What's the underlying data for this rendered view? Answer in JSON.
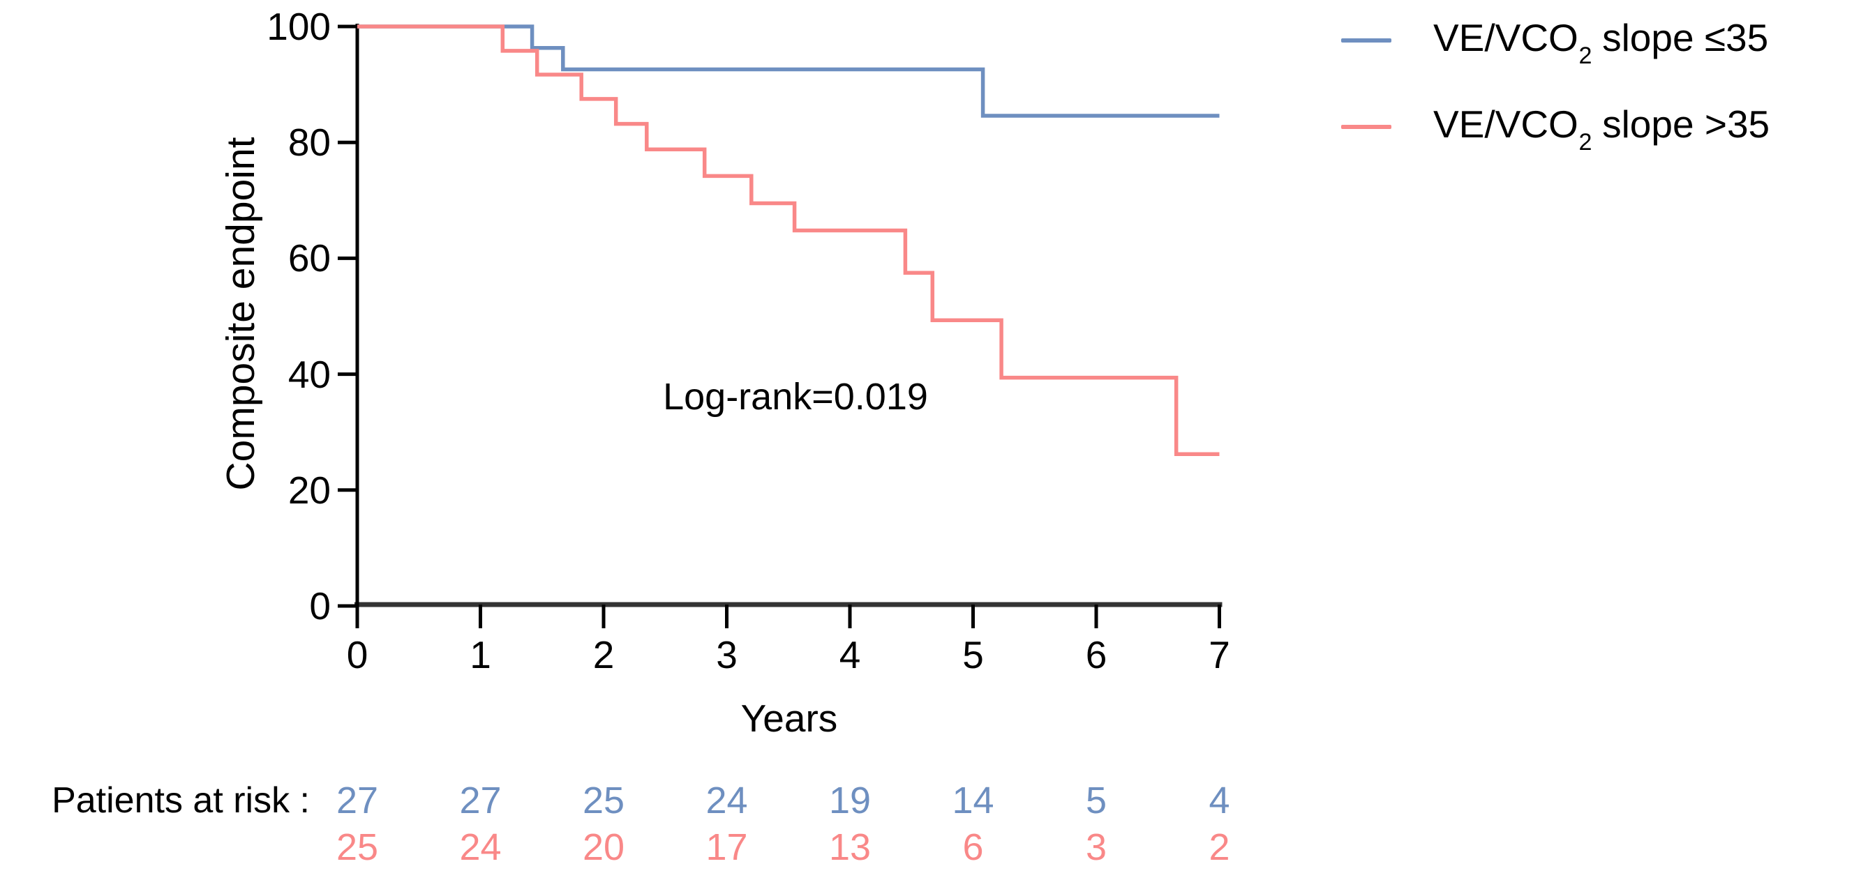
{
  "figure": {
    "y_axis_title": "Composite endpoint",
    "x_axis_title": "Years",
    "annotation": "Log-rank=0.019"
  },
  "colors": {
    "blue_series": "#6e8fc0",
    "red_series": "#f98888",
    "y_axis": "#000000",
    "x_axis": "#333333",
    "text": "#000000"
  },
  "legend": {
    "entries": [
      {
        "prefix": "VE/VCO",
        "sub": "2",
        "suffix": " slope ≤35",
        "color": "#6e8fc0"
      },
      {
        "prefix": "VE/VCO",
        "sub": "2",
        "suffix": " slope >35",
        "color": "#f98888"
      }
    ]
  },
  "chart_data": {
    "type": "line",
    "subtype": "kaplan_meier_step",
    "title": "",
    "xlabel": "Years",
    "ylabel": "Composite endpoint",
    "xlim": [
      0,
      7
    ],
    "ylim": [
      0,
      100
    ],
    "x_ticks": [
      0,
      1,
      2,
      3,
      4,
      5,
      6,
      7
    ],
    "y_ticks": [
      100,
      80,
      60,
      40,
      20,
      0
    ],
    "grid": false,
    "legend_position": "top-right",
    "annotation": {
      "text": "Log-rank=0.019",
      "x": 3.5,
      "y": 33
    },
    "series": [
      {
        "name": "VE/VCO2 slope ≤35",
        "color": "#6e8fc0",
        "start_y": 100,
        "steps": [
          {
            "x": 1.42,
            "y": 96.3
          },
          {
            "x": 1.67,
            "y": 92.6
          },
          {
            "x": 5.08,
            "y": 84.6
          }
        ],
        "end_x": 7.0
      },
      {
        "name": "VE/VCO2 slope >35",
        "color": "#f98888",
        "start_y": 100,
        "steps": [
          {
            "x": 1.18,
            "y": 95.8
          },
          {
            "x": 1.46,
            "y": 91.7
          },
          {
            "x": 1.82,
            "y": 87.5
          },
          {
            "x": 2.1,
            "y": 83.2
          },
          {
            "x": 2.35,
            "y": 78.8
          },
          {
            "x": 2.82,
            "y": 74.2
          },
          {
            "x": 3.2,
            "y": 69.5
          },
          {
            "x": 3.55,
            "y": 64.8
          },
          {
            "x": 4.45,
            "y": 57.5
          },
          {
            "x": 4.67,
            "y": 49.3
          },
          {
            "x": 5.23,
            "y": 39.4
          },
          {
            "x": 6.65,
            "y": 26.2
          }
        ],
        "end_x": 7.0
      }
    ]
  },
  "at_risk": {
    "label": "Patients at risk :",
    "rows": [
      {
        "series": "VE/VCO2 slope ≤35",
        "color": "#6e8fc0",
        "values": [
          27,
          27,
          25,
          24,
          19,
          14,
          5,
          4
        ]
      },
      {
        "series": "VE/VCO2 slope >35",
        "color": "#f98888",
        "values": [
          25,
          24,
          20,
          17,
          13,
          6,
          3,
          2
        ]
      }
    ]
  }
}
